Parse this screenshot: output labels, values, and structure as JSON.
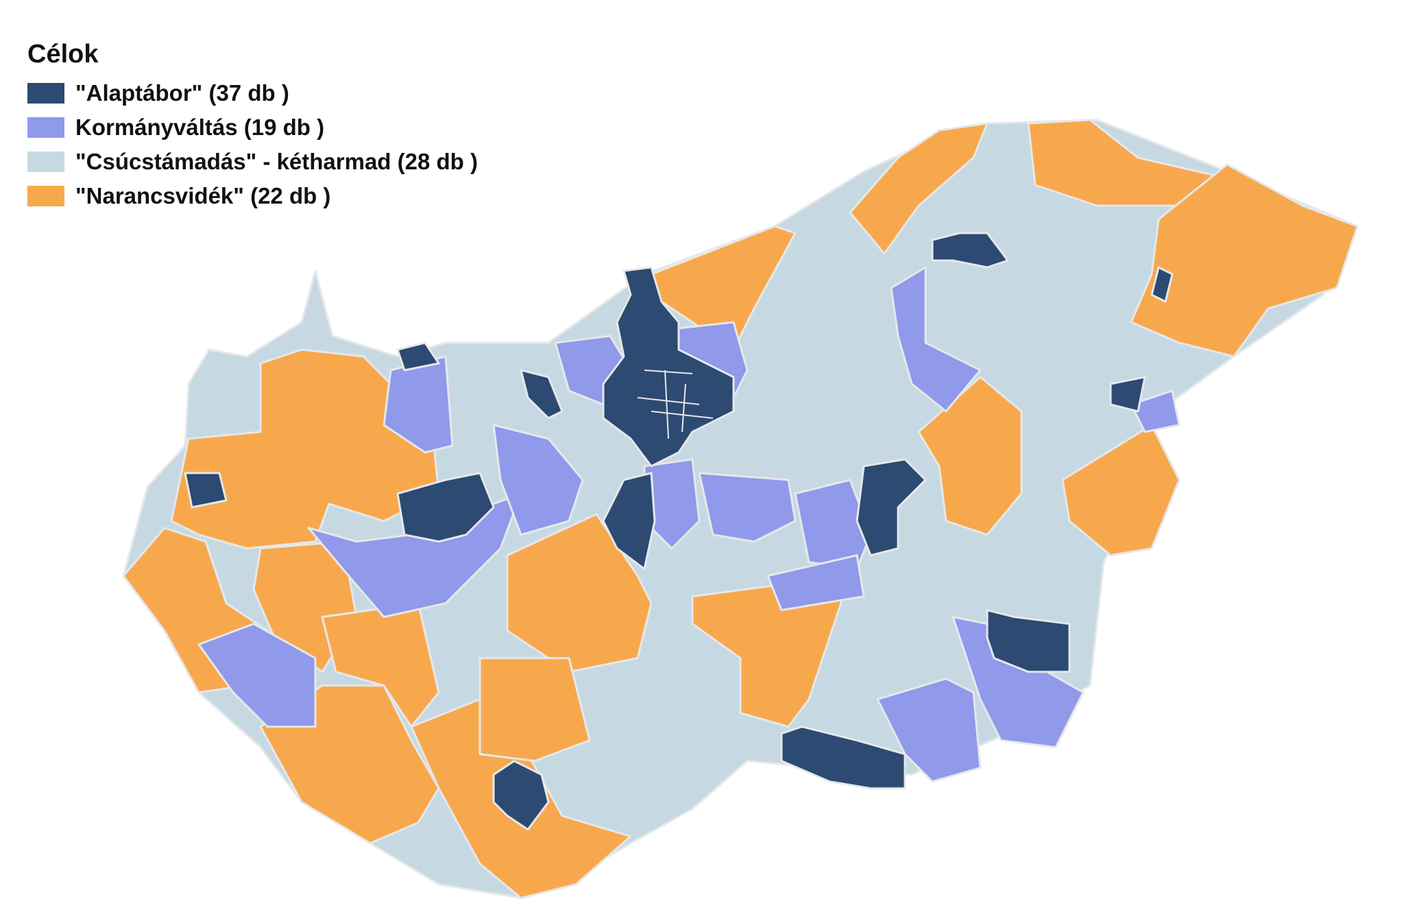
{
  "legend": {
    "title": "Célok",
    "items": [
      {
        "key": "alaptabor",
        "label": "\"Alaptábor\" (37 db )",
        "color": "#2c4a72"
      },
      {
        "key": "kormanyvaltas",
        "label": "Kormányváltás (19 db )",
        "color": "#9099ea"
      },
      {
        "key": "csucstamadas",
        "label": "\"Csúcstámadás\" - kétharmad (28 db )",
        "color": "#c6d9e2"
      },
      {
        "key": "narancsvidek",
        "label": "\"Narancsvidék\" (22 db )",
        "color": "#f8a84c"
      }
    ]
  }
}
